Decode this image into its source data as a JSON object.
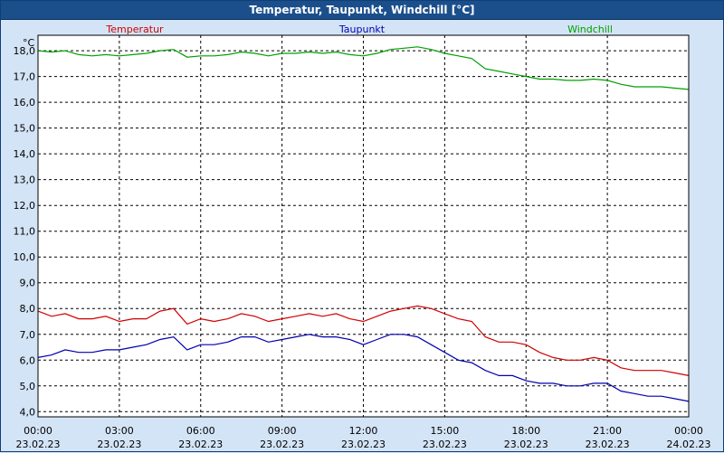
{
  "window": {
    "title": "Temperatur, Taupunkt, Windchill [°C]"
  },
  "chart_data": {
    "type": "line",
    "title": "Temperatur, Taupunkt, Windchill [°C]",
    "ylabel": "°C",
    "xlabel": "",
    "ylim": [
      4.0,
      18.5
    ],
    "xlim": [
      0,
      24
    ],
    "grid": true,
    "legend_position": "top",
    "y_ticks": [
      "4,0",
      "5,0",
      "6,0",
      "7,0",
      "8,0",
      "9,0",
      "10,0",
      "11,0",
      "12,0",
      "13,0",
      "14,0",
      "15,0",
      "16,0",
      "17,0",
      "18,0"
    ],
    "x_ticks": [
      {
        "time": "00:00",
        "date": "23.02.23"
      },
      {
        "time": "03:00",
        "date": "23.02.23"
      },
      {
        "time": "06:00",
        "date": "23.02.23"
      },
      {
        "time": "09:00",
        "date": "23.02.23"
      },
      {
        "time": "12:00",
        "date": "23.02.23"
      },
      {
        "time": "15:00",
        "date": "23.02.23"
      },
      {
        "time": "18:00",
        "date": "23.02.23"
      },
      {
        "time": "21:00",
        "date": "23.02.23"
      },
      {
        "time": "00:00",
        "date": "24.02.23"
      }
    ],
    "x": [
      0,
      0.5,
      1,
      1.5,
      2,
      2.5,
      3,
      3.5,
      4,
      4.5,
      5,
      5.5,
      6,
      6.5,
      7,
      7.5,
      8,
      8.5,
      9,
      9.5,
      10,
      10.5,
      11,
      11.5,
      12,
      12.5,
      13,
      13.5,
      14,
      14.5,
      15,
      15.5,
      16,
      16.5,
      17,
      17.5,
      18,
      18.5,
      19,
      19.5,
      20,
      20.5,
      21,
      21.5,
      22,
      22.5,
      23,
      23.5,
      24
    ],
    "series": [
      {
        "name": "Temperatur",
        "color": "#d00000",
        "values": [
          7.9,
          7.7,
          7.8,
          7.6,
          7.6,
          7.7,
          7.5,
          7.6,
          7.6,
          7.9,
          8.0,
          7.4,
          7.6,
          7.5,
          7.6,
          7.8,
          7.7,
          7.5,
          7.6,
          7.7,
          7.8,
          7.7,
          7.8,
          7.6,
          7.5,
          7.7,
          7.9,
          8.0,
          8.1,
          8.0,
          7.8,
          7.6,
          7.5,
          6.9,
          6.7,
          6.7,
          6.6,
          6.3,
          6.1,
          6.0,
          6.0,
          6.1,
          6.0,
          5.7,
          5.6,
          5.6,
          5.6,
          5.5,
          5.4
        ]
      },
      {
        "name": "Taupunkt",
        "color": "#0000b0",
        "values": [
          6.1,
          6.2,
          6.4,
          6.3,
          6.3,
          6.4,
          6.4,
          6.5,
          6.6,
          6.8,
          6.9,
          6.4,
          6.6,
          6.6,
          6.7,
          6.9,
          6.9,
          6.7,
          6.8,
          6.9,
          7.0,
          6.9,
          6.9,
          6.8,
          6.6,
          6.8,
          7.0,
          7.0,
          6.9,
          6.6,
          6.3,
          6.0,
          5.9,
          5.6,
          5.4,
          5.4,
          5.2,
          5.1,
          5.1,
          5.0,
          5.0,
          5.1,
          5.1,
          4.8,
          4.7,
          4.6,
          4.6,
          4.5,
          4.4
        ]
      },
      {
        "name": "Windchill",
        "color": "#00a000",
        "values": [
          18.0,
          17.95,
          18.0,
          17.85,
          17.8,
          17.85,
          17.8,
          17.85,
          17.9,
          18.0,
          18.05,
          17.75,
          17.8,
          17.8,
          17.85,
          17.95,
          17.9,
          17.8,
          17.9,
          17.9,
          17.95,
          17.9,
          17.95,
          17.85,
          17.8,
          17.9,
          18.05,
          18.1,
          18.15,
          18.05,
          17.9,
          17.8,
          17.7,
          17.3,
          17.2,
          17.1,
          17.0,
          16.9,
          16.9,
          16.85,
          16.85,
          16.9,
          16.85,
          16.7,
          16.6,
          16.6,
          16.6,
          16.55,
          16.5
        ]
      }
    ]
  },
  "colors": {
    "background": "#d4e4f7",
    "titlebar": "#1b4f8c",
    "plot_background": "#ffffff",
    "grid": "#000000"
  }
}
